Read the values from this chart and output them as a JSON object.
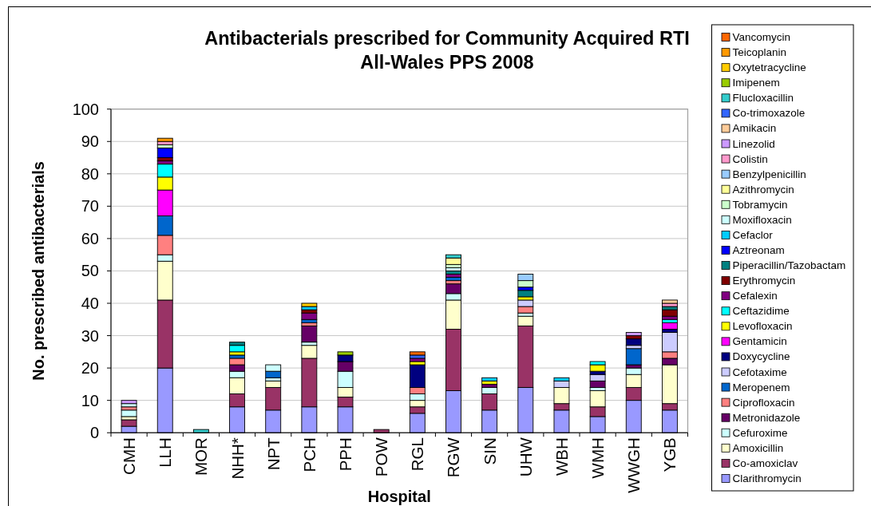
{
  "chart_data": {
    "type": "bar",
    "title": "Antibacterials prescribed for Community Acquired RTI",
    "subtitle": "All-Wales PPS 2008",
    "xlabel": "Hospital",
    "ylabel": "No. prescribed antibacterials",
    "categories": [
      "CMH",
      "LLH",
      "MOR",
      "NHH*",
      "NPT",
      "PCH",
      "PPH",
      "POW",
      "RGL",
      "RGW",
      "SIN",
      "UHW",
      "WBH",
      "WMH",
      "WWGH",
      "YGB"
    ],
    "stacked": true,
    "ylim": [
      0,
      100
    ],
    "yticks": [
      0,
      10,
      20,
      30,
      40,
      50,
      60,
      70,
      80,
      90,
      100
    ],
    "grid": "y",
    "legend": "right",
    "series": [
      {
        "name": "Clarithromycin",
        "color": "#9999ff",
        "values": [
          2,
          20,
          null,
          8,
          7,
          8,
          8,
          null,
          6,
          13,
          7,
          14,
          7,
          5,
          10,
          7
        ]
      },
      {
        "name": "Co-amoxiclav",
        "color": "#993366",
        "values": [
          2,
          21,
          null,
          4,
          7,
          15,
          3,
          1,
          2,
          19,
          5,
          19,
          2,
          3,
          4,
          2
        ]
      },
      {
        "name": "Amoxicillin",
        "color": "#ffffcc",
        "values": [
          1,
          12,
          null,
          5,
          2,
          4,
          3,
          null,
          2,
          9,
          null,
          3,
          5,
          5,
          4,
          12
        ]
      },
      {
        "name": "Cefuroxime",
        "color": "#ccffff",
        "values": [
          2,
          2,
          null,
          2,
          1,
          1,
          5,
          null,
          2,
          2,
          2,
          1,
          null,
          1,
          2,
          null
        ]
      },
      {
        "name": "Metronidazole",
        "color": "#660066",
        "values": [
          null,
          null,
          null,
          2,
          null,
          5,
          3,
          null,
          null,
          3,
          1,
          null,
          null,
          2,
          1,
          2
        ]
      },
      {
        "name": "Ciprofloxacin",
        "color": "#ff8080",
        "values": [
          1,
          6,
          null,
          2,
          null,
          1,
          null,
          null,
          2,
          1,
          null,
          2,
          null,
          null,
          null,
          2
        ]
      },
      {
        "name": "Meropenem",
        "color": "#0066cc",
        "values": [
          null,
          6,
          null,
          1,
          2,
          1,
          null,
          null,
          null,
          1,
          null,
          null,
          null,
          null,
          5,
          null
        ]
      },
      {
        "name": "Cefotaxime",
        "color": "#ccccff",
        "values": [
          null,
          null,
          null,
          null,
          null,
          null,
          null,
          null,
          null,
          null,
          null,
          2,
          2,
          2,
          1,
          6
        ]
      },
      {
        "name": "Doxycycline",
        "color": "#000080",
        "values": [
          null,
          null,
          null,
          null,
          null,
          null,
          2,
          null,
          7,
          null,
          null,
          null,
          null,
          1,
          2,
          1
        ]
      },
      {
        "name": "Gentamicin",
        "color": "#ff00ff",
        "values": [
          null,
          8,
          null,
          null,
          null,
          null,
          null,
          null,
          null,
          null,
          null,
          null,
          null,
          null,
          null,
          2
        ]
      },
      {
        "name": "Levofloxacin",
        "color": "#ffff00",
        "values": [
          null,
          4,
          null,
          1,
          null,
          null,
          null,
          null,
          1,
          null,
          1,
          1,
          null,
          2,
          null,
          null
        ]
      },
      {
        "name": "Ceftazidime",
        "color": "#00ffff",
        "values": [
          null,
          4,
          null,
          2,
          null,
          null,
          null,
          null,
          null,
          null,
          null,
          null,
          null,
          1,
          null,
          1
        ]
      },
      {
        "name": "Cefalexin",
        "color": "#800080",
        "values": [
          null,
          1,
          null,
          null,
          null,
          2,
          null,
          null,
          1,
          1,
          null,
          null,
          null,
          null,
          null,
          1
        ]
      },
      {
        "name": "Erythromycin",
        "color": "#800000",
        "values": [
          null,
          1,
          null,
          null,
          null,
          1,
          null,
          null,
          null,
          null,
          null,
          null,
          null,
          null,
          1,
          2
        ]
      },
      {
        "name": "Piperacillin/Tazobactam",
        "color": "#008080",
        "values": [
          null,
          null,
          null,
          1,
          null,
          null,
          null,
          null,
          null,
          1,
          null,
          2,
          null,
          null,
          null,
          1
        ]
      },
      {
        "name": "Aztreonam",
        "color": "#0000ff",
        "values": [
          null,
          3,
          null,
          null,
          null,
          null,
          null,
          null,
          null,
          null,
          null,
          1,
          null,
          null,
          null,
          null
        ]
      },
      {
        "name": "Cefaclor",
        "color": "#00ccff",
        "values": [
          null,
          null,
          null,
          null,
          null,
          1,
          null,
          null,
          null,
          null,
          1,
          null,
          1,
          null,
          null,
          null
        ]
      },
      {
        "name": "Moxifloxacin",
        "color": "#ccffff",
        "values": [
          1,
          null,
          null,
          null,
          2,
          null,
          null,
          null,
          null,
          1,
          null,
          null,
          null,
          null,
          null,
          null
        ]
      },
      {
        "name": "Tobramycin",
        "color": "#ccffcc",
        "values": [
          null,
          1,
          null,
          null,
          null,
          null,
          null,
          null,
          null,
          1,
          null,
          2,
          null,
          null,
          null,
          null
        ]
      },
      {
        "name": "Azithromycin",
        "color": "#ffff99",
        "values": [
          null,
          null,
          null,
          null,
          null,
          null,
          null,
          null,
          null,
          2,
          null,
          null,
          null,
          null,
          null,
          null
        ]
      },
      {
        "name": "Benzylpenicillin",
        "color": "#99ccff",
        "values": [
          null,
          null,
          null,
          null,
          null,
          null,
          null,
          null,
          null,
          null,
          null,
          2,
          null,
          null,
          null,
          null
        ]
      },
      {
        "name": "Colistin",
        "color": "#ff99cc",
        "values": [
          null,
          1,
          null,
          null,
          null,
          null,
          null,
          null,
          null,
          null,
          null,
          null,
          null,
          null,
          null,
          1
        ]
      },
      {
        "name": "Linezolid",
        "color": "#cc99ff",
        "values": [
          1,
          null,
          null,
          null,
          null,
          null,
          null,
          null,
          null,
          null,
          null,
          null,
          null,
          null,
          1,
          null
        ]
      },
      {
        "name": "Amikacin",
        "color": "#ffcc99",
        "values": [
          null,
          null,
          null,
          null,
          null,
          null,
          null,
          null,
          null,
          null,
          null,
          null,
          null,
          null,
          null,
          1
        ]
      },
      {
        "name": "Co-trimoxazole",
        "color": "#3366ff",
        "values": [
          null,
          null,
          null,
          null,
          null,
          null,
          null,
          null,
          1,
          null,
          null,
          null,
          null,
          null,
          null,
          null
        ]
      },
      {
        "name": "Flucloxacillin",
        "color": "#33cccc",
        "values": [
          null,
          null,
          1,
          null,
          null,
          null,
          null,
          null,
          null,
          1,
          null,
          null,
          null,
          null,
          null,
          null
        ]
      },
      {
        "name": "Imipenem",
        "color": "#99cc00",
        "values": [
          null,
          null,
          null,
          null,
          null,
          null,
          1,
          null,
          null,
          null,
          null,
          null,
          null,
          null,
          null,
          null
        ]
      },
      {
        "name": "Oxytetracycline",
        "color": "#ffcc00",
        "values": [
          null,
          null,
          null,
          null,
          null,
          1,
          null,
          null,
          null,
          null,
          null,
          null,
          null,
          null,
          null,
          null
        ]
      },
      {
        "name": "Teicoplanin",
        "color": "#ff9900",
        "values": [
          null,
          1,
          null,
          null,
          null,
          null,
          null,
          null,
          null,
          null,
          null,
          null,
          null,
          null,
          null,
          null
        ]
      },
      {
        "name": "Vancomycin",
        "color": "#ff6600",
        "values": [
          null,
          null,
          null,
          null,
          null,
          null,
          null,
          null,
          1,
          null,
          null,
          null,
          null,
          null,
          null,
          null
        ]
      }
    ]
  }
}
